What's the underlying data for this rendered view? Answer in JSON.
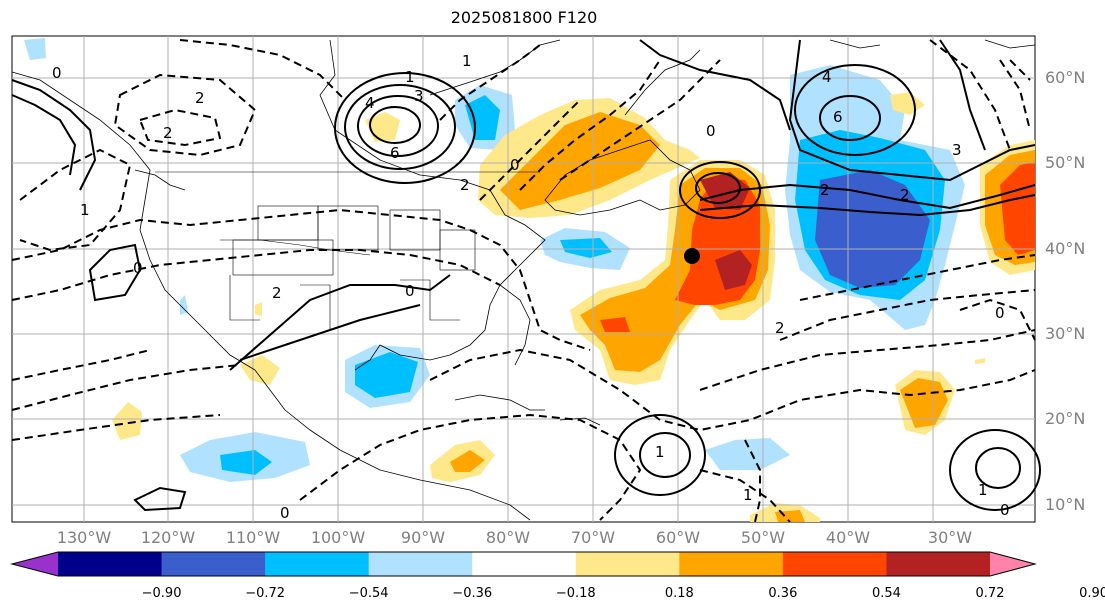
{
  "title": "2025081800 F120",
  "lon_labels": [
    "130°W",
    "120°W",
    "110°W",
    "100°W",
    "90°W",
    "80°W",
    "70°W",
    "60°W",
    "50°W",
    "40°W",
    "30°W"
  ],
  "lat_labels": [
    "60°N",
    "50°N",
    "40°N",
    "30°N",
    "20°N",
    "10°N"
  ],
  "colorbar": {
    "tick_labels": [
      "−0.90",
      "−0.72",
      "−0.54",
      "−0.36",
      "−0.18",
      "0.18",
      "0.36",
      "0.54",
      "0.72",
      "0.90"
    ],
    "colors": [
      "#9932cc",
      "#00008b",
      "#3a5fcd",
      "#00bfff",
      "#b0e2ff",
      "#ffffff",
      "#ffe88a",
      "#ffa500",
      "#ff4500",
      "#b22222",
      "#ff82ab"
    ]
  },
  "contour_labels": [
    "2",
    "2",
    "1",
    "4",
    "3",
    "6",
    "0",
    "2",
    "0",
    "1",
    "0",
    "4",
    "6",
    "3",
    "2",
    "2",
    "1",
    "0",
    "2",
    "0",
    "0",
    "1",
    "0",
    "0",
    "1",
    "1",
    "2"
  ]
}
